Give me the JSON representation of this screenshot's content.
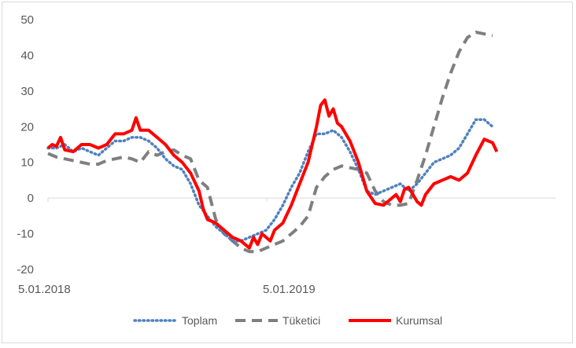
{
  "chart_data": {
    "type": "line",
    "title": "",
    "xlabel": "",
    "ylabel": "",
    "ylim": [
      -20,
      50
    ],
    "yticks": [
      -20,
      -10,
      0,
      10,
      20,
      30,
      40,
      50
    ],
    "x_range": [
      "2018-01-05",
      "2020-05-01"
    ],
    "x_tick_labels": [
      {
        "date": "2018-01-05",
        "label": "5.01.2018"
      },
      {
        "date": "2019-01-05",
        "label": "5.01.2019"
      }
    ],
    "legend_position": "bottom",
    "grid": false,
    "series": [
      {
        "name": "Toplam",
        "color": "#4f81bd",
        "style": "dotted",
        "points": [
          [
            "2018-01-05",
            14
          ],
          [
            "2018-01-19",
            14
          ],
          [
            "2018-02-02",
            15
          ],
          [
            "2018-02-16",
            13
          ],
          [
            "2018-03-02",
            14
          ],
          [
            "2018-03-16",
            13
          ],
          [
            "2018-03-30",
            12
          ],
          [
            "2018-04-13",
            14
          ],
          [
            "2018-04-27",
            16
          ],
          [
            "2018-05-11",
            16
          ],
          [
            "2018-05-25",
            17
          ],
          [
            "2018-06-08",
            17
          ],
          [
            "2018-06-22",
            16
          ],
          [
            "2018-07-06",
            14
          ],
          [
            "2018-07-20",
            11
          ],
          [
            "2018-08-03",
            9
          ],
          [
            "2018-08-17",
            8
          ],
          [
            "2018-08-31",
            4
          ],
          [
            "2018-09-14",
            -2
          ],
          [
            "2018-09-28",
            -5
          ],
          [
            "2018-10-12",
            -8
          ],
          [
            "2018-10-26",
            -10
          ],
          [
            "2018-11-09",
            -12
          ],
          [
            "2018-11-23",
            -12
          ],
          [
            "2018-12-07",
            -11
          ],
          [
            "2018-12-21",
            -10
          ],
          [
            "2019-01-04",
            -9
          ],
          [
            "2019-01-18",
            -6
          ],
          [
            "2019-02-01",
            -2
          ],
          [
            "2019-02-15",
            3
          ],
          [
            "2019-03-01",
            7
          ],
          [
            "2019-03-15",
            13
          ],
          [
            "2019-03-29",
            18
          ],
          [
            "2019-04-12",
            18
          ],
          [
            "2019-04-26",
            19
          ],
          [
            "2019-05-10",
            17
          ],
          [
            "2019-05-24",
            13
          ],
          [
            "2019-06-07",
            8
          ],
          [
            "2019-06-21",
            2
          ],
          [
            "2019-07-05",
            1
          ],
          [
            "2019-07-19",
            2
          ],
          [
            "2019-08-02",
            3
          ],
          [
            "2019-08-16",
            4
          ],
          [
            "2019-08-30",
            2
          ],
          [
            "2019-09-13",
            4
          ],
          [
            "2019-09-27",
            7
          ],
          [
            "2019-10-11",
            10
          ],
          [
            "2019-10-25",
            11
          ],
          [
            "2019-11-08",
            12
          ],
          [
            "2019-11-22",
            14
          ],
          [
            "2019-12-06",
            18
          ],
          [
            "2019-12-20",
            22
          ],
          [
            "2020-01-03",
            22
          ],
          [
            "2020-01-17",
            20
          ]
        ]
      },
      {
        "name": "Tüketici",
        "color": "#7f7f7f",
        "style": "dashed",
        "points": [
          [
            "2018-01-05",
            12.5
          ],
          [
            "2018-01-19",
            11.5
          ],
          [
            "2018-02-02",
            11
          ],
          [
            "2018-02-16",
            10.5
          ],
          [
            "2018-03-02",
            10
          ],
          [
            "2018-03-16",
            9.5
          ],
          [
            "2018-03-30",
            9.5
          ],
          [
            "2018-04-13",
            10.5
          ],
          [
            "2018-04-27",
            11
          ],
          [
            "2018-05-11",
            11.5
          ],
          [
            "2018-05-25",
            11
          ],
          [
            "2018-06-08",
            10
          ],
          [
            "2018-06-22",
            13
          ],
          [
            "2018-07-06",
            12
          ],
          [
            "2018-07-20",
            13
          ],
          [
            "2018-08-03",
            13.5
          ],
          [
            "2018-08-17",
            12
          ],
          [
            "2018-08-31",
            11
          ],
          [
            "2018-09-14",
            5
          ],
          [
            "2018-09-28",
            3
          ],
          [
            "2018-10-12",
            -6
          ],
          [
            "2018-10-26",
            -10
          ],
          [
            "2018-11-09",
            -12
          ],
          [
            "2018-11-23",
            -14
          ],
          [
            "2018-12-07",
            -15
          ],
          [
            "2018-12-21",
            -15
          ],
          [
            "2019-01-04",
            -14
          ],
          [
            "2019-01-18",
            -13
          ],
          [
            "2019-02-01",
            -12
          ],
          [
            "2019-02-15",
            -10
          ],
          [
            "2019-03-01",
            -8
          ],
          [
            "2019-03-15",
            -5
          ],
          [
            "2019-03-29",
            3
          ],
          [
            "2019-04-12",
            6
          ],
          [
            "2019-04-26",
            8
          ],
          [
            "2019-05-10",
            9
          ],
          [
            "2019-05-24",
            8.5
          ],
          [
            "2019-06-07",
            8
          ],
          [
            "2019-06-21",
            7
          ],
          [
            "2019-07-05",
            2
          ],
          [
            "2019-07-19",
            -1
          ],
          [
            "2019-08-02",
            -2
          ],
          [
            "2019-08-16",
            -2
          ],
          [
            "2019-08-30",
            -1.5
          ],
          [
            "2019-09-13",
            5
          ],
          [
            "2019-09-27",
            12
          ],
          [
            "2019-10-11",
            20
          ],
          [
            "2019-10-25",
            28
          ],
          [
            "2019-11-08",
            35
          ],
          [
            "2019-11-22",
            41
          ],
          [
            "2019-12-06",
            45
          ],
          [
            "2019-12-20",
            46.5
          ],
          [
            "2020-01-03",
            46
          ],
          [
            "2020-01-17",
            45.5
          ]
        ]
      },
      {
        "name": "Kurumsal",
        "color": "#ff0000",
        "style": "solid",
        "points": [
          [
            "2018-01-05",
            14
          ],
          [
            "2018-01-12",
            15
          ],
          [
            "2018-01-19",
            14.5
          ],
          [
            "2018-01-26",
            17
          ],
          [
            "2018-02-02",
            13.5
          ],
          [
            "2018-02-16",
            13
          ],
          [
            "2018-03-02",
            15
          ],
          [
            "2018-03-16",
            15
          ],
          [
            "2018-03-30",
            14
          ],
          [
            "2018-04-13",
            15
          ],
          [
            "2018-04-27",
            18
          ],
          [
            "2018-05-11",
            18
          ],
          [
            "2018-05-25",
            19
          ],
          [
            "2018-06-01",
            22.5
          ],
          [
            "2018-06-08",
            19
          ],
          [
            "2018-06-22",
            19
          ],
          [
            "2018-07-06",
            17
          ],
          [
            "2018-07-20",
            15
          ],
          [
            "2018-08-03",
            12
          ],
          [
            "2018-08-17",
            10
          ],
          [
            "2018-08-31",
            7
          ],
          [
            "2018-09-14",
            2
          ],
          [
            "2018-09-21",
            -3
          ],
          [
            "2018-09-28",
            -6
          ],
          [
            "2018-10-12",
            -7
          ],
          [
            "2018-10-26",
            -9
          ],
          [
            "2018-11-09",
            -11
          ],
          [
            "2018-11-23",
            -12
          ],
          [
            "2018-12-07",
            -14
          ],
          [
            "2018-12-14",
            -11
          ],
          [
            "2018-12-21",
            -13
          ],
          [
            "2018-12-28",
            -10
          ],
          [
            "2019-01-04",
            -11
          ],
          [
            "2019-01-11",
            -12
          ],
          [
            "2019-01-18",
            -9
          ],
          [
            "2019-02-01",
            -7
          ],
          [
            "2019-02-15",
            -2
          ],
          [
            "2019-03-01",
            4
          ],
          [
            "2019-03-15",
            10
          ],
          [
            "2019-03-29",
            20
          ],
          [
            "2019-04-05",
            26
          ],
          [
            "2019-04-12",
            27.5
          ],
          [
            "2019-04-19",
            23
          ],
          [
            "2019-04-26",
            25
          ],
          [
            "2019-05-03",
            21
          ],
          [
            "2019-05-10",
            20
          ],
          [
            "2019-05-24",
            16
          ],
          [
            "2019-06-07",
            10
          ],
          [
            "2019-06-21",
            2
          ],
          [
            "2019-07-05",
            -1.5
          ],
          [
            "2019-07-19",
            -2
          ],
          [
            "2019-08-02",
            0
          ],
          [
            "2019-08-09",
            1
          ],
          [
            "2019-08-16",
            -1
          ],
          [
            "2019-08-23",
            2.5
          ],
          [
            "2019-08-30",
            3
          ],
          [
            "2019-09-06",
            1
          ],
          [
            "2019-09-13",
            -1
          ],
          [
            "2019-09-20",
            -2
          ],
          [
            "2019-09-27",
            1
          ],
          [
            "2019-10-11",
            4
          ],
          [
            "2019-10-25",
            5
          ],
          [
            "2019-11-08",
            6
          ],
          [
            "2019-11-22",
            5
          ],
          [
            "2019-12-06",
            7
          ],
          [
            "2019-12-20",
            12
          ],
          [
            "2020-01-03",
            16.5
          ],
          [
            "2020-01-10",
            16
          ],
          [
            "2020-01-17",
            15.5
          ],
          [
            "2020-01-24",
            13
          ]
        ]
      }
    ]
  }
}
